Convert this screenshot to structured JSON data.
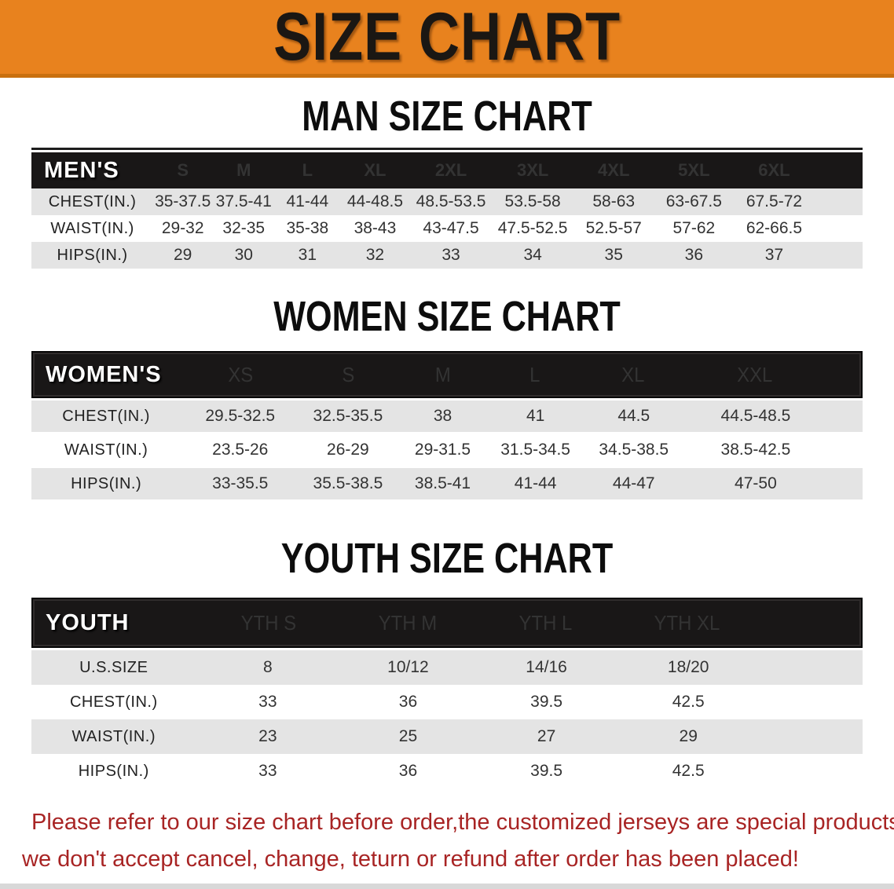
{
  "banner": {
    "title": "SIZE CHART"
  },
  "sections": [
    {
      "heading": "MAN SIZE CHART",
      "table": {
        "header": [
          "MEN'S",
          "S",
          "M",
          "L",
          "XL",
          "2XL",
          "3XL",
          "4XL",
          "5XL",
          "6XL"
        ],
        "rows": [
          [
            "CHEST(IN.)",
            "35-37.5",
            "37.5-41",
            "41-44",
            "44-48.5",
            "48.5-53.5",
            "53.5-58",
            "58-63",
            "63-67.5",
            "67.5-72"
          ],
          [
            "WAIST(IN.)",
            "29-32",
            "32-35",
            "35-38",
            "38-43",
            "43-47.5",
            "47.5-52.5",
            "52.5-57",
            "57-62",
            "62-66.5"
          ],
          [
            "HIPS(IN.)",
            "29",
            "30",
            "31",
            "32",
            "33",
            "34",
            "35",
            "36",
            "37"
          ]
        ]
      }
    },
    {
      "heading": "WOMEN SIZE CHART",
      "table": {
        "header": [
          "WOMEN'S",
          "XS",
          "S",
          "M",
          "L",
          "XL",
          "XXL"
        ],
        "rows": [
          [
            "CHEST(IN.)",
            "29.5-32.5",
            "32.5-35.5",
            "38",
            "41",
            "44.5",
            "44.5-48.5"
          ],
          [
            "WAIST(IN.)",
            "23.5-26",
            "26-29",
            "29-31.5",
            "31.5-34.5",
            "34.5-38.5",
            "38.5-42.5"
          ],
          [
            "HIPS(IN.)",
            "33-35.5",
            "35.5-38.5",
            "38.5-41",
            "41-44",
            "44-47",
            "47-50"
          ]
        ]
      }
    },
    {
      "heading": "YOUTH SIZE CHART",
      "table": {
        "header": [
          "YOUTH",
          "YTH S",
          "YTH M",
          "YTH L",
          "YTH XL"
        ],
        "rows": [
          [
            "U.S.SIZE",
            "8",
            "10/12",
            "14/16",
            "18/20"
          ],
          [
            "CHEST(IN.)",
            "33",
            "36",
            "39.5",
            "42.5"
          ],
          [
            "WAIST(IN.)",
            "23",
            "25",
            "27",
            "29"
          ],
          [
            "HIPS(IN.)",
            "33",
            "36",
            "39.5",
            "42.5"
          ]
        ]
      }
    }
  ],
  "disclaimer": {
    "line1": "Please refer to our size chart before order,the customized jerseys are special products,",
    "line2": "we don't accept cancel, change, teturn or refund after order has been placed!"
  },
  "colors": {
    "banner_orange": "#e8821e",
    "banner_border": "#c9700f",
    "header_black": "#191717",
    "row_gray": "#e4e4e4",
    "disclaimer_red": "#a82424"
  }
}
